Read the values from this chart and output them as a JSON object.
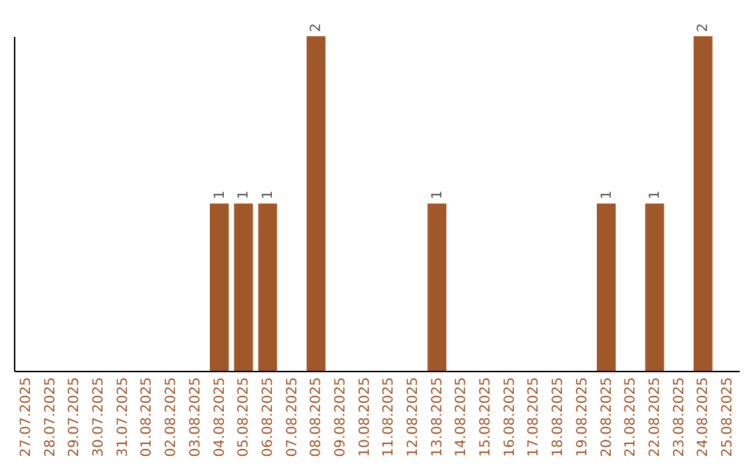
{
  "chart_data": {
    "type": "bar",
    "categories": [
      "27.07.2025",
      "28.07.2025",
      "29.07.2025",
      "30.07.2025",
      "31.07.2025",
      "01.08.2025",
      "02.08.2025",
      "03.08.2025",
      "04.08.2025",
      "05.08.2025",
      "06.08.2025",
      "07.08.2025",
      "08.08.2025",
      "09.08.2025",
      "10.08.2025",
      "11.08.2025",
      "12.08.2025",
      "13.08.2025",
      "14.08.2025",
      "15.08.2025",
      "16.08.2025",
      "17.08.2025",
      "18.08.2025",
      "19.08.2025",
      "20.08.2025",
      "21.08.2025",
      "22.08.2025",
      "23.08.2025",
      "24.08.2025",
      "25.08.2025"
    ],
    "values": [
      0,
      0,
      0,
      0,
      0,
      0,
      0,
      0,
      1,
      1,
      1,
      0,
      2,
      0,
      0,
      0,
      0,
      1,
      0,
      0,
      0,
      0,
      0,
      0,
      1,
      0,
      1,
      0,
      2,
      0
    ],
    "value_labels": [
      null,
      null,
      null,
      null,
      null,
      null,
      null,
      null,
      "1",
      "1",
      "1",
      null,
      "2",
      null,
      null,
      null,
      null,
      "1",
      null,
      null,
      null,
      null,
      null,
      null,
      "1",
      null,
      "1",
      null,
      "2",
      null
    ],
    "color": "#a0572a",
    "tick_labels": "x"
  }
}
